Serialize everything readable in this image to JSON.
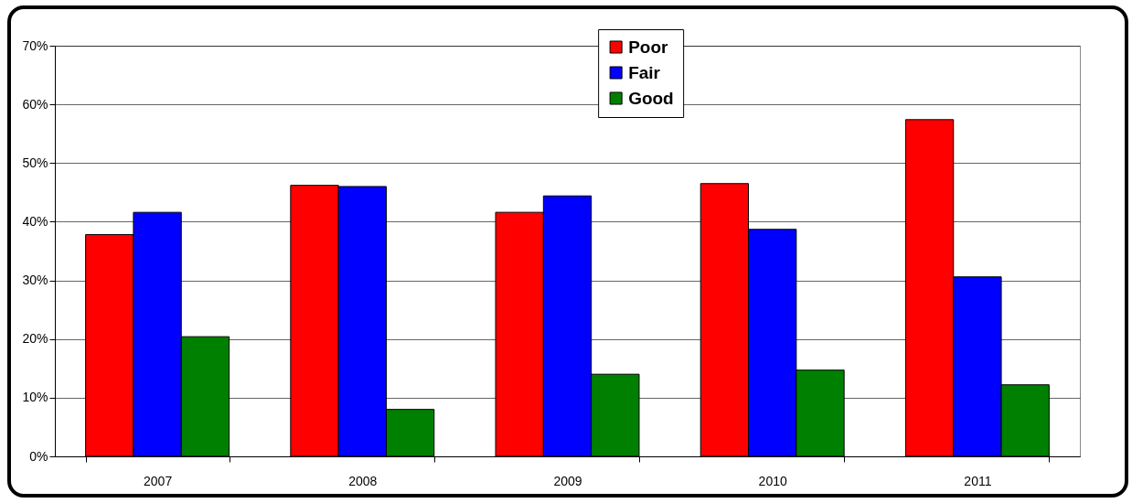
{
  "chart_data": {
    "type": "bar",
    "categories": [
      "2007",
      "2008",
      "2009",
      "2010",
      "2011"
    ],
    "series": [
      {
        "name": "Poor",
        "color": "#ff0000",
        "values": [
          37.8,
          46.2,
          41.6,
          46.5,
          57.4
        ]
      },
      {
        "name": "Fair",
        "color": "#0000ff",
        "values": [
          41.6,
          46.0,
          44.4,
          38.7,
          30.6
        ]
      },
      {
        "name": "Good",
        "color": "#008000",
        "values": [
          20.4,
          8.0,
          14.0,
          14.7,
          12.2
        ]
      }
    ],
    "ylim": [
      0,
      70
    ],
    "yticks": [
      {
        "value": 0,
        "label": "0%"
      },
      {
        "value": 10,
        "label": "10%"
      },
      {
        "value": 20,
        "label": "20%"
      },
      {
        "value": 30,
        "label": "30%"
      },
      {
        "value": 40,
        "label": "40%"
      },
      {
        "value": 50,
        "label": "50%"
      },
      {
        "value": 60,
        "label": "60%"
      },
      {
        "value": 70,
        "label": "70%"
      }
    ],
    "grid": "y",
    "legend": "top"
  }
}
